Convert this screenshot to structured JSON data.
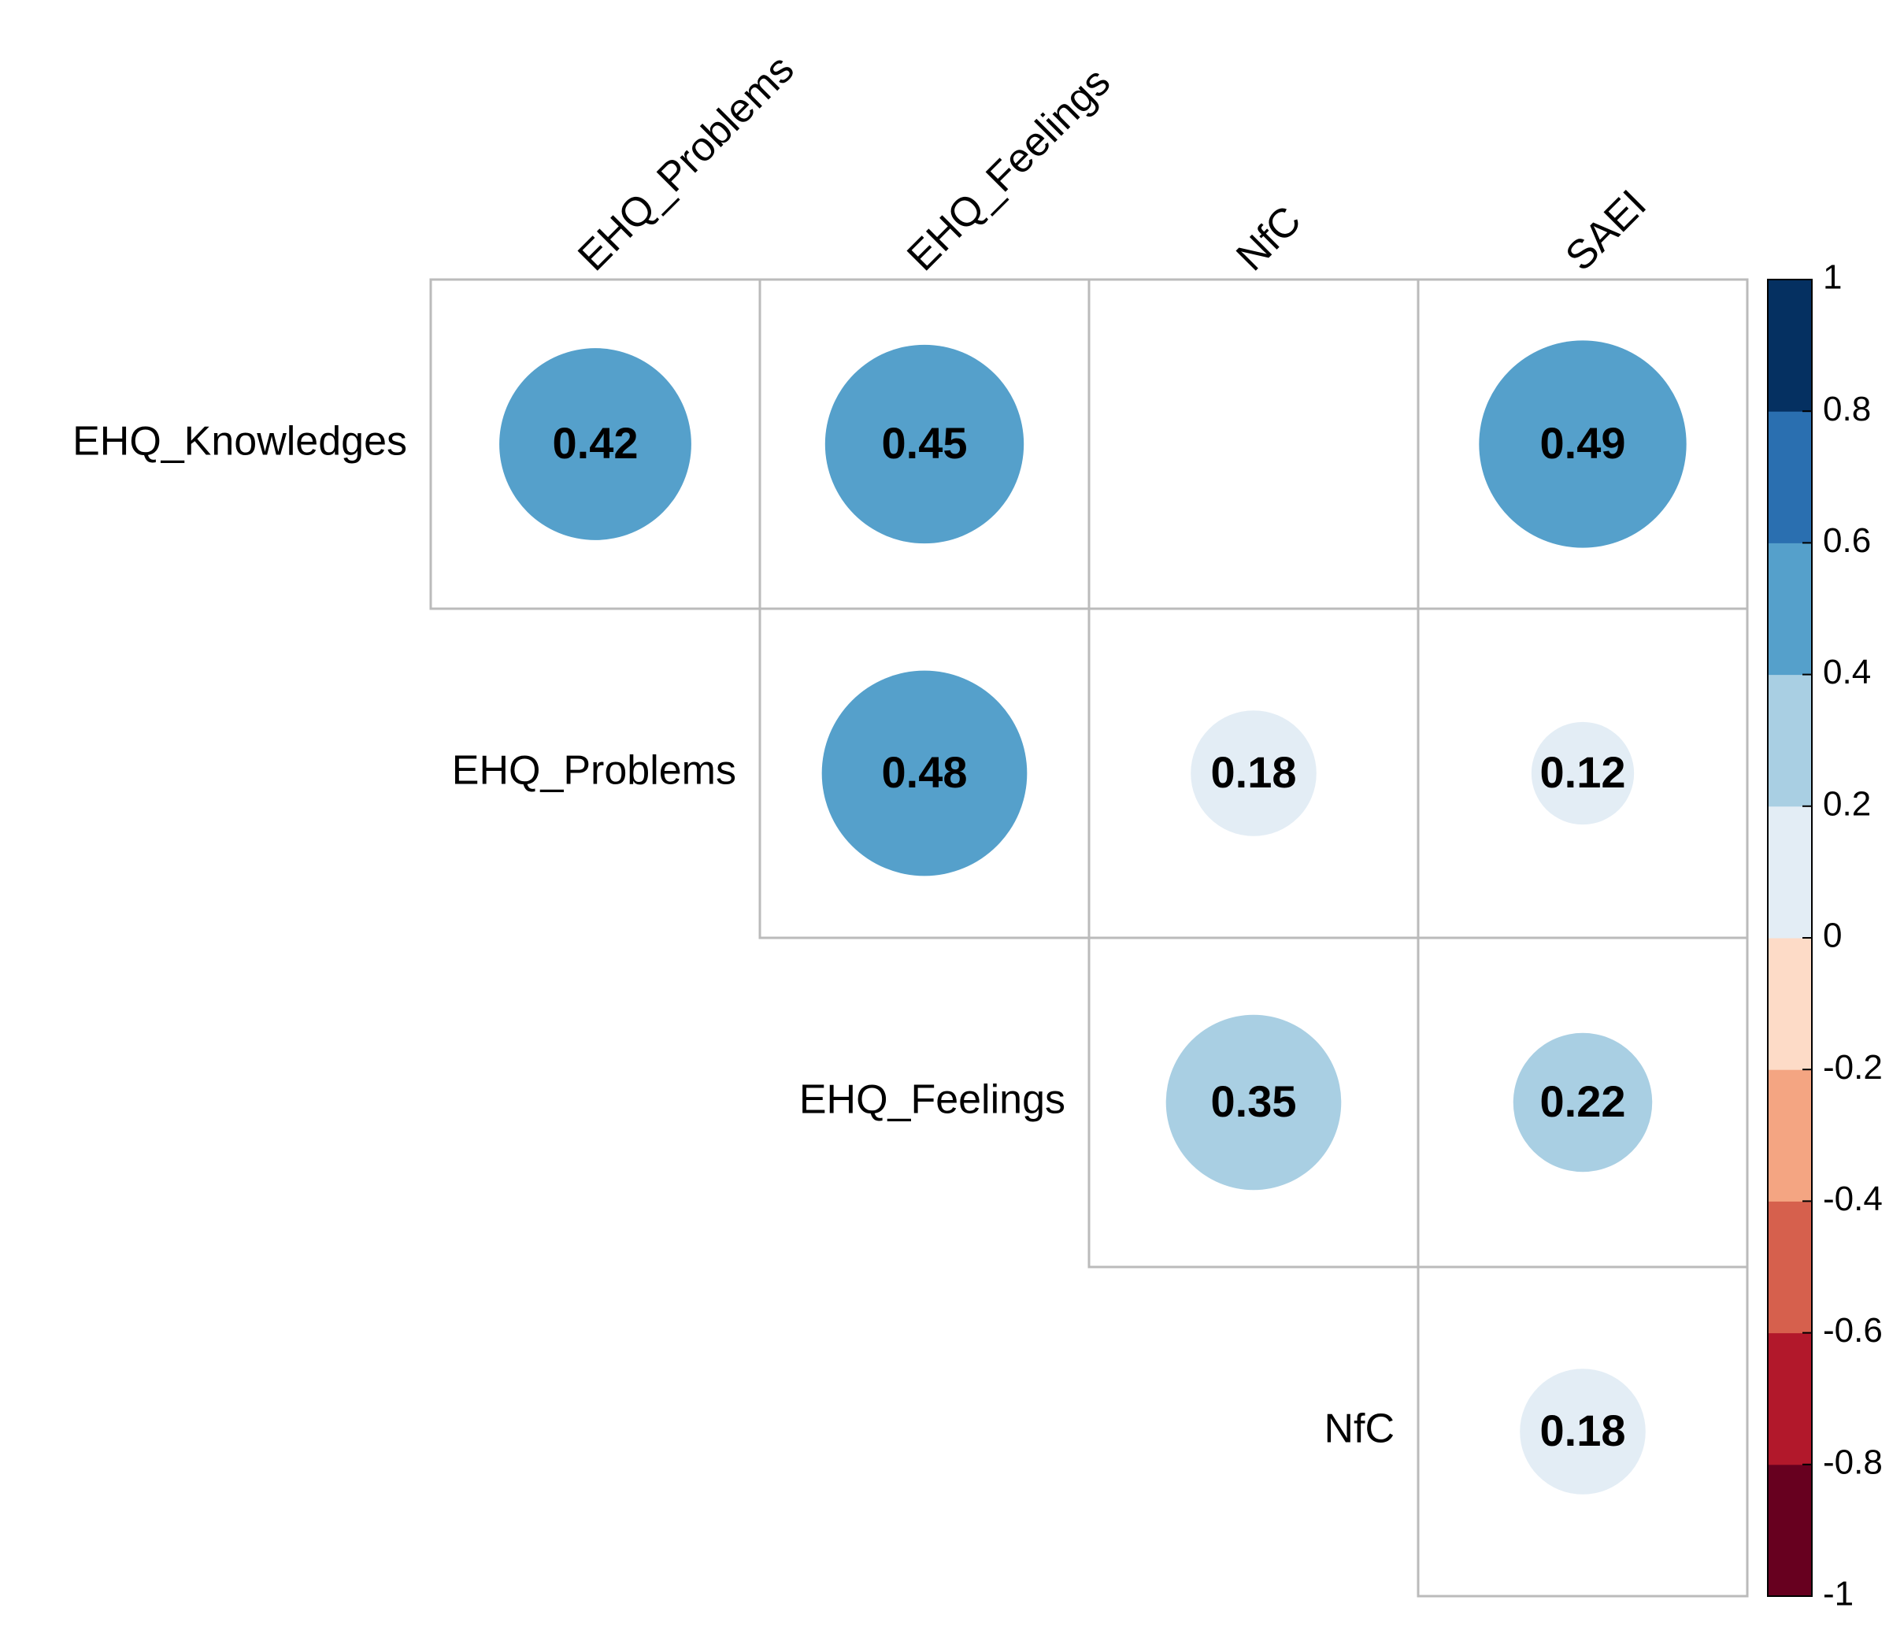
{
  "chart_data": {
    "type": "corrplot",
    "layout": "upper",
    "rows": [
      "EHQ_Knowledges",
      "EHQ_Problems",
      "EHQ_Feelings",
      "NfC"
    ],
    "columns": [
      "EHQ_Problems",
      "EHQ_Feelings",
      "NfC",
      "SAEI"
    ],
    "values": [
      [
        0.42,
        0.45,
        null,
        0.49
      ],
      [
        null,
        0.48,
        0.18,
        0.12
      ],
      [
        null,
        null,
        0.35,
        0.22
      ],
      [
        null,
        null,
        null,
        0.18
      ]
    ],
    "colorbar": {
      "lim": [
        -1,
        1
      ],
      "ticks": [
        -1,
        -0.8,
        -0.6,
        -0.4,
        -0.2,
        0,
        0.2,
        0.4,
        0.6,
        0.8,
        1
      ],
      "colors": [
        "#67001f",
        "#b2182b",
        "#d6604d",
        "#f4a582",
        "#fddbc7",
        "#e3edf5",
        "#a9cfe3",
        "#55a0cb",
        "#2a6fb0",
        "#053061"
      ]
    }
  }
}
